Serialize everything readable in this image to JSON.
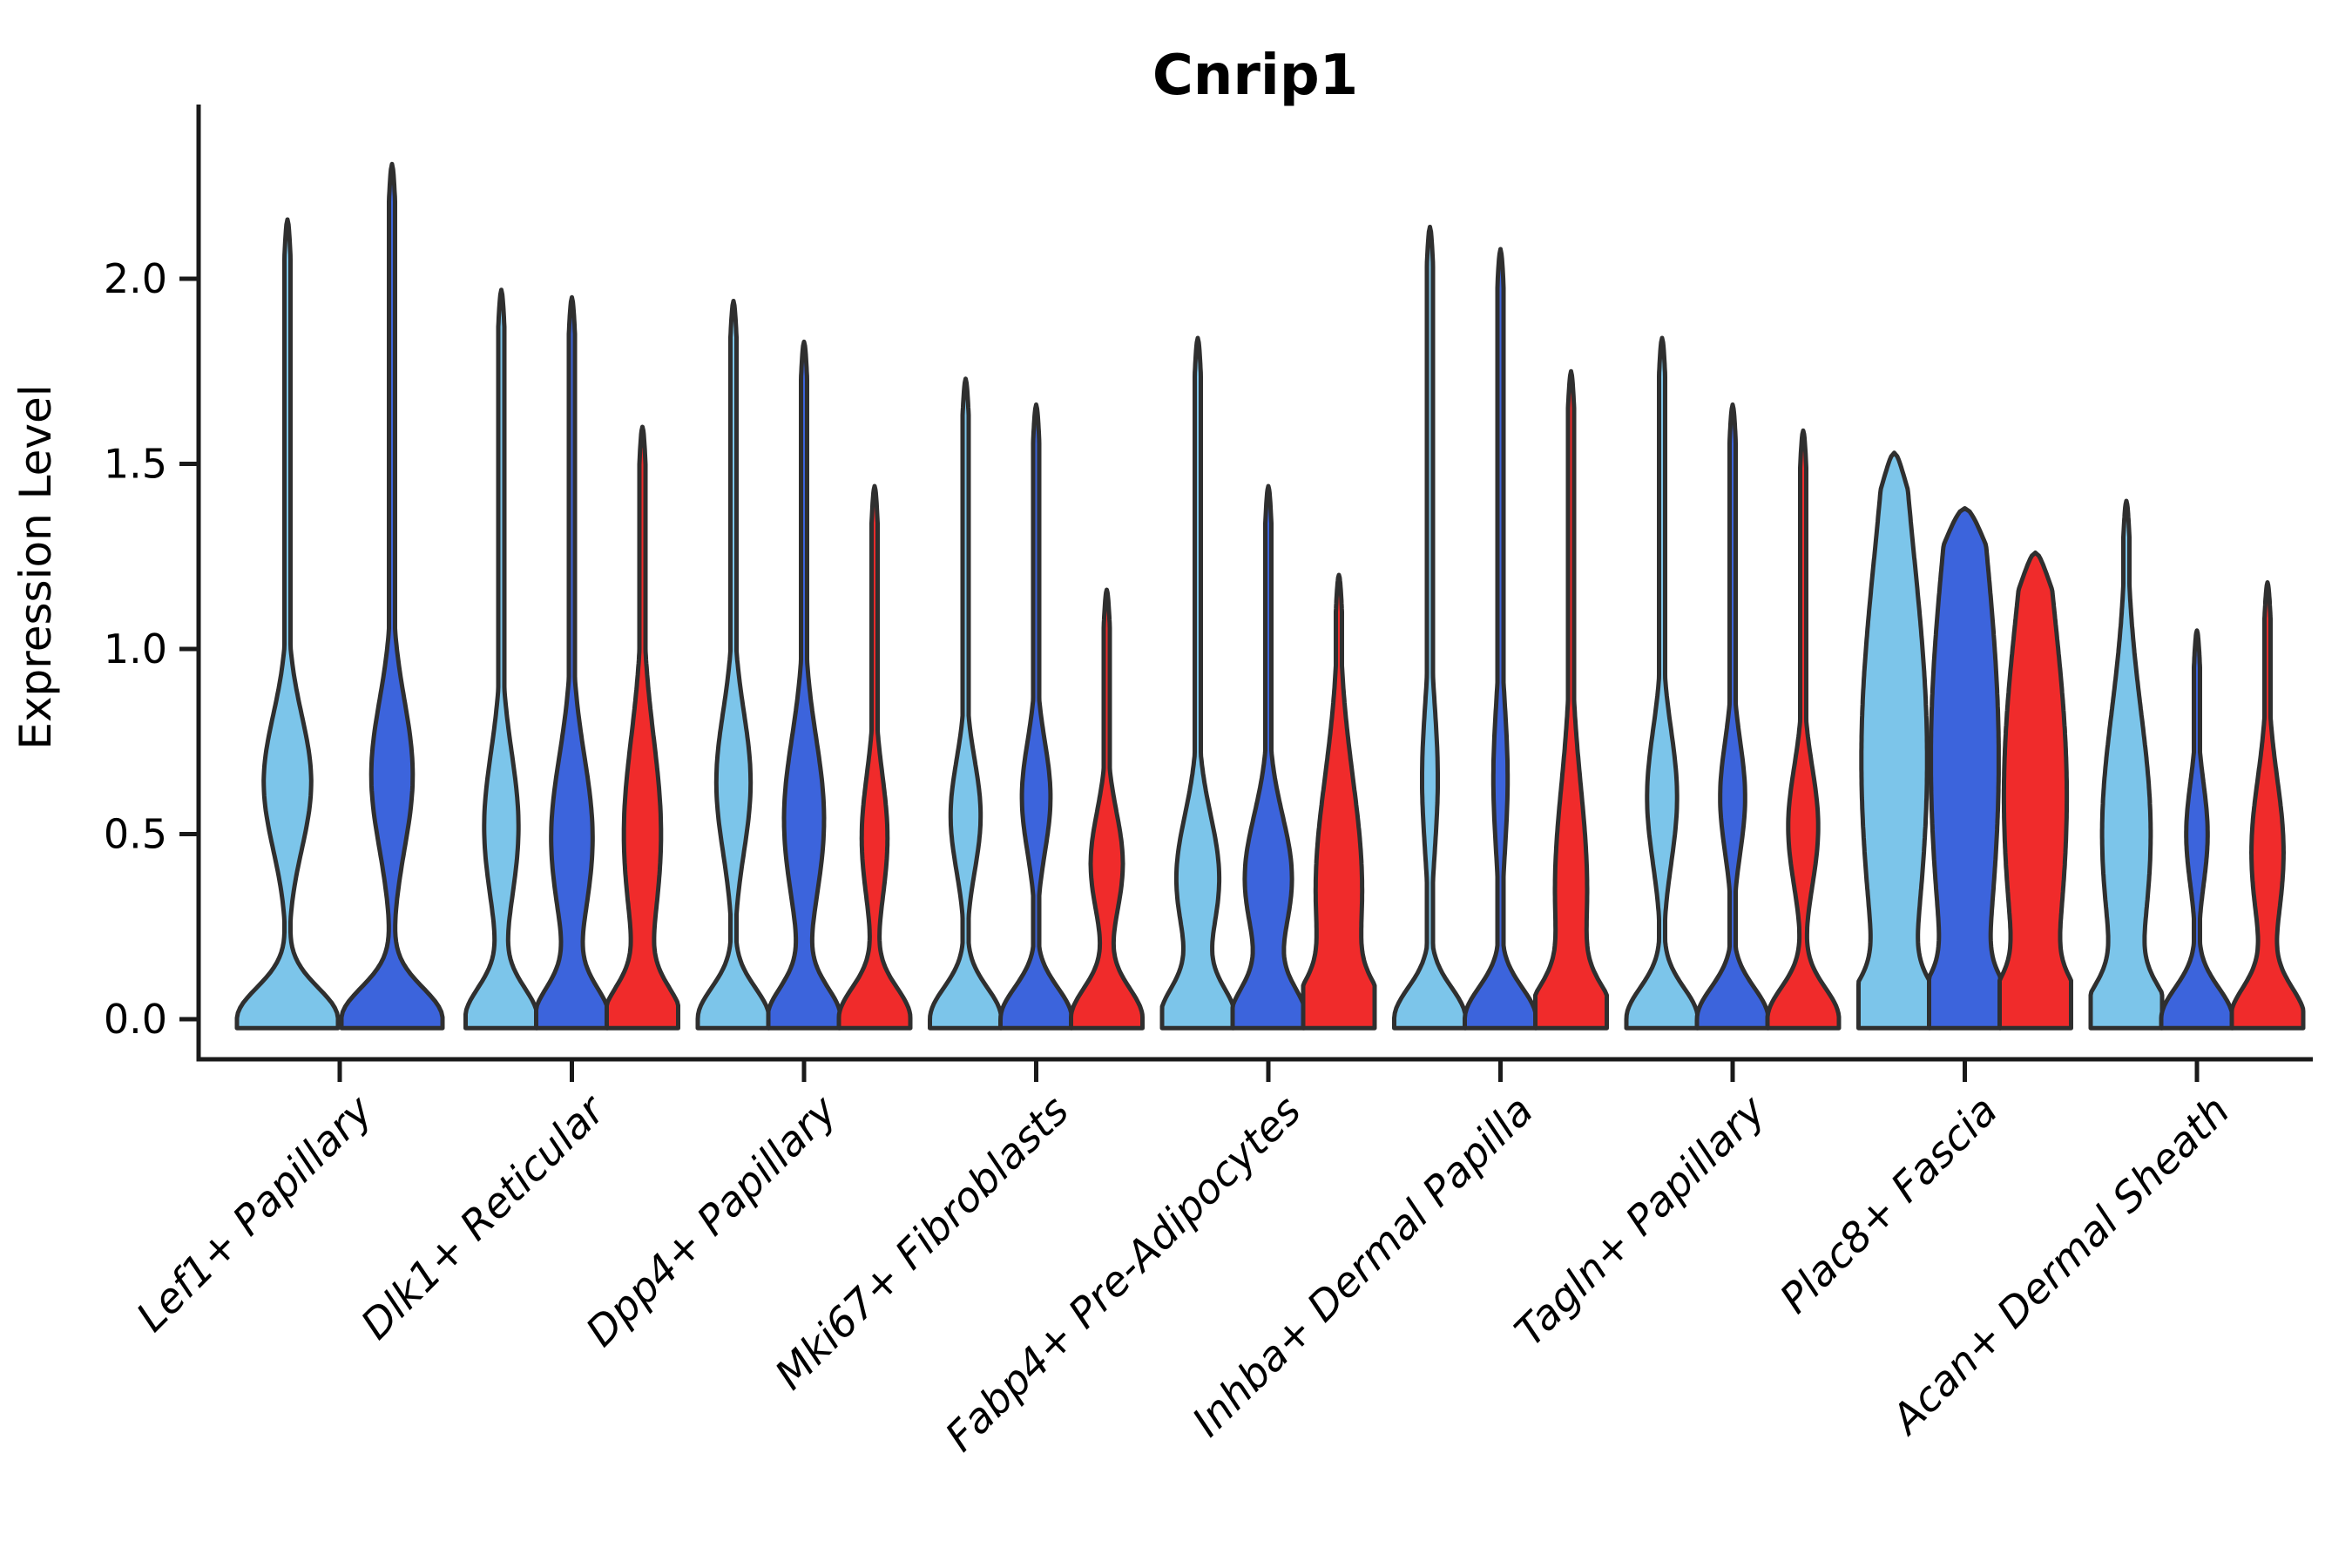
{
  "figure": {
    "title": "Cnrip1",
    "y_axis_label": "Expression Level"
  },
  "chart_data": {
    "type": "violin",
    "title": "Cnrip1",
    "xlabel": "",
    "ylabel": "Expression Level",
    "ylim": [
      -0.05,
      2.55
    ],
    "grid": false,
    "legend_position": "none",
    "y_ticks": [
      0.0,
      0.5,
      1.0,
      1.5,
      2.0
    ],
    "y_tick_labels": [
      "0.0",
      "0.5",
      "1.0",
      "1.5",
      "2.0"
    ],
    "palette": {
      "light_blue": "#7CC5EA",
      "dark_blue": "#3C64DC",
      "red": "#F02B2B"
    },
    "outline_color": "#2F2F2F",
    "categories": [
      "Lef1+ Papillary",
      "Dlk1+ Reticular",
      "Dpp4+ Papillary",
      "Mki67+ Fibroblasts",
      "Fabp4+ Pre-Adipocytes",
      "Inhba+ Dermal Papilla",
      "Tagln+ Papillary",
      "Plac8+ Fascia",
      "Acan+ Dermal Sheath"
    ],
    "groups": [
      {
        "category": "Lef1+ Papillary",
        "slug": "lef1-papillary",
        "violins": [
          {
            "series": "light_blue",
            "color": "#7CC5EA",
            "max": 2.16,
            "bulge_center": 0.64,
            "bulge_sigma": 0.18,
            "bulge_amp": 0.47
          },
          {
            "series": "dark_blue",
            "color": "#3C64DC",
            "max": 2.31,
            "bulge_center": 0.66,
            "bulge_sigma": 0.2,
            "bulge_amp": 0.41
          }
        ]
      },
      {
        "category": "Dlk1+ Reticular",
        "slug": "dlk1-reticular",
        "violins": [
          {
            "series": "light_blue",
            "color": "#7CC5EA",
            "max": 1.97,
            "bulge_center": 0.52,
            "bulge_sigma": 0.2,
            "bulge_amp": 0.48
          },
          {
            "series": "dark_blue",
            "color": "#3C64DC",
            "max": 1.95,
            "bulge_center": 0.49,
            "bulge_sigma": 0.22,
            "bulge_amp": 0.58
          },
          {
            "series": "red",
            "color": "#F02B2B",
            "max": 1.6,
            "bulge_center": 0.5,
            "bulge_sigma": 0.26,
            "bulge_amp": 0.52
          }
        ]
      },
      {
        "category": "Dpp4+ Papillary",
        "slug": "dpp4-papillary",
        "violins": [
          {
            "series": "light_blue",
            "color": "#7CC5EA",
            "max": 1.94,
            "bulge_center": 0.64,
            "bulge_sigma": 0.19,
            "bulge_amp": 0.48
          },
          {
            "series": "dark_blue",
            "color": "#3C64DC",
            "max": 1.83,
            "bulge_center": 0.54,
            "bulge_sigma": 0.22,
            "bulge_amp": 0.56
          },
          {
            "series": "red",
            "color": "#F02B2B",
            "max": 1.44,
            "bulge_center": 0.49,
            "bulge_sigma": 0.17,
            "bulge_amp": 0.36
          }
        ]
      },
      {
        "category": "Mki67+ Fibroblasts",
        "slug": "mki67-fibroblasts",
        "violins": [
          {
            "series": "light_blue",
            "color": "#7CC5EA",
            "max": 1.73,
            "bulge_center": 0.55,
            "bulge_sigma": 0.15,
            "bulge_amp": 0.42
          },
          {
            "series": "dark_blue",
            "color": "#3C64DC",
            "max": 1.66,
            "bulge_center": 0.6,
            "bulge_sigma": 0.15,
            "bulge_amp": 0.4
          },
          {
            "series": "red",
            "color": "#F02B2B",
            "max": 1.16,
            "bulge_center": 0.42,
            "bulge_sigma": 0.14,
            "bulge_amp": 0.45
          }
        ]
      },
      {
        "category": "Fabp4+ Pre-Adipocytes",
        "slug": "fabp4-pre-adipocytes",
        "violins": [
          {
            "series": "light_blue",
            "color": "#7CC5EA",
            "max": 1.84,
            "bulge_center": 0.38,
            "bulge_sigma": 0.17,
            "bulge_amp": 0.6
          },
          {
            "series": "dark_blue",
            "color": "#3C64DC",
            "max": 1.44,
            "bulge_center": 0.38,
            "bulge_sigma": 0.17,
            "bulge_amp": 0.66
          },
          {
            "series": "red",
            "color": "#F02B2B",
            "max": 1.2,
            "bulge_center": 0.35,
            "bulge_sigma": 0.3,
            "bulge_amp": 0.65
          }
        ]
      },
      {
        "category": "Inhba+ Dermal Papilla",
        "slug": "inhba-dermal-papilla",
        "violins": [
          {
            "series": "light_blue",
            "color": "#7CC5EA",
            "max": 2.14,
            "bulge_center": 0.65,
            "bulge_sigma": 0.2,
            "bulge_amp": 0.22
          },
          {
            "series": "dark_blue",
            "color": "#3C64DC",
            "max": 2.08,
            "bulge_center": 0.65,
            "bulge_sigma": 0.2,
            "bulge_amp": 0.2
          },
          {
            "series": "red",
            "color": "#F02B2B",
            "max": 1.75,
            "bulge_center": 0.35,
            "bulge_sigma": 0.28,
            "bulge_amp": 0.45
          }
        ]
      },
      {
        "category": "Tagln+ Papillary",
        "slug": "tagln-papillary",
        "violins": [
          {
            "series": "light_blue",
            "color": "#7CC5EA",
            "max": 1.84,
            "bulge_center": 0.6,
            "bulge_sigma": 0.18,
            "bulge_amp": 0.42
          },
          {
            "series": "dark_blue",
            "color": "#3C64DC",
            "max": 1.66,
            "bulge_center": 0.6,
            "bulge_sigma": 0.15,
            "bulge_amp": 0.35
          },
          {
            "series": "red",
            "color": "#F02B2B",
            "max": 1.59,
            "bulge_center": 0.52,
            "bulge_sigma": 0.16,
            "bulge_amp": 0.42
          }
        ]
      },
      {
        "category": "Plac8+ Fascia",
        "slug": "plac8-fascia",
        "violins": [
          {
            "series": "light_blue",
            "color": "#7CC5EA",
            "max": 1.53,
            "bulge_center": 0.7,
            "bulge_sigma": 0.55,
            "bulge_amp": 0.92
          },
          {
            "series": "dark_blue",
            "color": "#3C64DC",
            "max": 1.38,
            "bulge_center": 0.7,
            "bulge_sigma": 0.6,
            "bulge_amp": 0.95
          },
          {
            "series": "red",
            "color": "#F02B2B",
            "max": 1.26,
            "bulge_center": 0.6,
            "bulge_sigma": 0.5,
            "bulge_amp": 0.88
          }
        ]
      },
      {
        "category": "Acan+ Dermal Sheath",
        "slug": "acan-dermal-sheath",
        "violins": [
          {
            "series": "light_blue",
            "color": "#7CC5EA",
            "max": 1.4,
            "bulge_center": 0.5,
            "bulge_sigma": 0.33,
            "bulge_amp": 0.68
          },
          {
            "series": "dark_blue",
            "color": "#3C64DC",
            "max": 1.05,
            "bulge_center": 0.5,
            "bulge_sigma": 0.14,
            "bulge_amp": 0.3
          },
          {
            "series": "red",
            "color": "#F02B2B",
            "max": 1.18,
            "bulge_center": 0.45,
            "bulge_sigma": 0.2,
            "bulge_amp": 0.45
          }
        ]
      }
    ]
  }
}
